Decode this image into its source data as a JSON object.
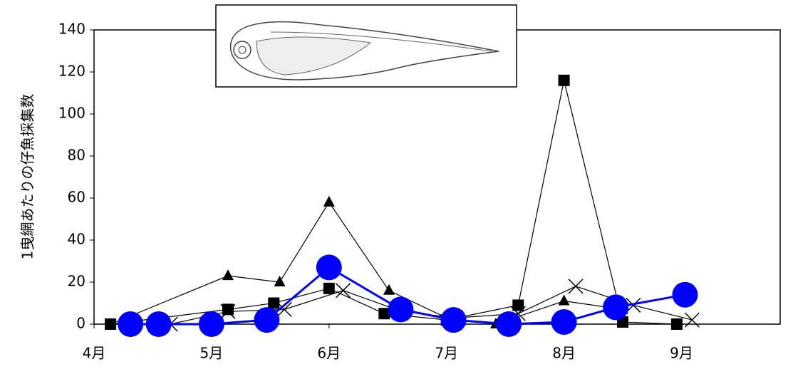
{
  "chart_data": {
    "type": "line",
    "y_label": "1曳網あたりの仔魚採集数",
    "xlim": [
      4,
      9.84
    ],
    "xticks": [
      {
        "value": 4,
        "label": "4月"
      },
      {
        "value": 5,
        "label": "5月"
      },
      {
        "value": 6,
        "label": "6月"
      },
      {
        "value": 7,
        "label": "7月"
      },
      {
        "value": 8,
        "label": "8月"
      },
      {
        "value": 9,
        "label": "9月"
      }
    ],
    "ylim": [
      0,
      140
    ],
    "yticks": [
      0,
      20,
      40,
      60,
      80,
      100,
      120,
      140
    ],
    "grid": false,
    "series": [
      {
        "color": "#000000",
        "marker": "square",
        "x": [
          4.14,
          5.14,
          5.53,
          6.0,
          6.47,
          7.0,
          7.61,
          8.0,
          8.5,
          8.96
        ],
        "values": [
          0,
          7,
          10,
          17,
          5,
          2,
          9,
          116,
          1,
          0
        ]
      },
      {
        "color": "#000000",
        "marker": "triangle",
        "x": [
          4.14,
          5.14,
          5.58,
          6.0,
          6.51,
          7.0,
          7.42,
          8.0,
          8.5
        ],
        "values": [
          0,
          23,
          20,
          58,
          16,
          3,
          0,
          11,
          7
        ]
      },
      {
        "color": "#000000",
        "marker": "cross",
        "x": [
          4.65,
          5.14,
          5.62,
          6.12,
          6.62,
          7.08,
          7.61,
          8.1,
          8.59,
          9.09
        ],
        "values": [
          0,
          6,
          7,
          16,
          6,
          3,
          5,
          18,
          9,
          2
        ]
      },
      {
        "color": "#0000ff",
        "marker": "circle",
        "x": [
          4.31,
          4.55,
          5.0,
          5.47,
          6.0,
          6.61,
          7.06,
          7.53,
          8.0,
          8.44,
          9.03
        ],
        "values": [
          0,
          0,
          0,
          2,
          27,
          7,
          2,
          0,
          1,
          8,
          14
        ]
      }
    ]
  }
}
